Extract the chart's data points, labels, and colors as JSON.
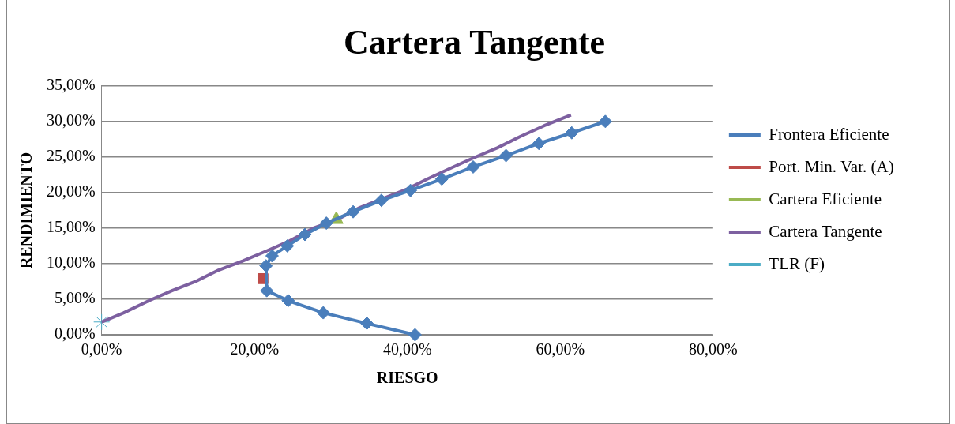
{
  "chart_data": {
    "type": "line",
    "title": "Cartera Tangente",
    "xlabel": "RIESGO",
    "ylabel": "RENDIMIENTO",
    "xlim": [
      0,
      80
    ],
    "xticks": [
      {
        "value": 0,
        "label": "0,00%"
      },
      {
        "value": 20,
        "label": "20,00%"
      },
      {
        "value": 40,
        "label": "40,00%"
      },
      {
        "value": 60,
        "label": "60,00%"
      },
      {
        "value": 80,
        "label": "80,00%"
      }
    ],
    "ylim": [
      0,
      35
    ],
    "yticks": [
      {
        "value": 0,
        "label": "0,00%"
      },
      {
        "value": 5,
        "label": "5,00%"
      },
      {
        "value": 10,
        "label": "10,00%"
      },
      {
        "value": 15,
        "label": "15,00%"
      },
      {
        "value": 20,
        "label": "20,00%"
      },
      {
        "value": 25,
        "label": "25,00%"
      },
      {
        "value": 30,
        "label": "30,00%"
      },
      {
        "value": 35,
        "label": "35,00%"
      }
    ],
    "grid": "y",
    "legend": "right",
    "series": [
      {
        "name": "Frontera Eficiente",
        "color": "#4a7ebb",
        "marker": "diamond",
        "x": [
          41.0,
          34.7,
          29.0,
          24.4,
          21.6,
          21.5,
          22.3,
          24.3,
          26.6,
          29.4,
          32.9,
          36.6,
          40.4,
          44.5,
          48.6,
          52.9,
          57.2,
          61.5,
          65.9
        ],
        "values": [
          0,
          1.6,
          3.1,
          4.8,
          6.2,
          9.7,
          11.1,
          12.5,
          14.1,
          15.7,
          17.3,
          18.9,
          20.3,
          21.9,
          23.6,
          25.2,
          26.9,
          28.4,
          30.0
        ]
      },
      {
        "name": "Port. Min. Var. (A)",
        "color": "#be4b48",
        "marker": "square",
        "x": [
          21.1
        ],
        "values": [
          7.9
        ]
      },
      {
        "name": "Cartera Eficiente",
        "color": "#98b954",
        "marker": "triangle",
        "x": [
          30.7
        ],
        "values": [
          16.2
        ]
      },
      {
        "name": "Cartera Tangente",
        "color": "#7d60a0",
        "marker": "none",
        "x": [
          0,
          2.9,
          6.2,
          9.2,
          12.3,
          15.3,
          18.5,
          21.6,
          24.6,
          27.7,
          30.8,
          33.8,
          36.9,
          40.0,
          42.6,
          45.6,
          48.7,
          51.8,
          54.8,
          57.9,
          61.4
        ],
        "values": [
          1.8,
          3.1,
          4.8,
          6.2,
          7.5,
          9.1,
          10.4,
          11.8,
          13.2,
          15.0,
          16.2,
          17.9,
          19.2,
          20.5,
          21.9,
          23.4,
          24.9,
          26.3,
          27.9,
          29.4,
          30.9
        ]
      },
      {
        "name": "TLR (F)",
        "color": "#4bacc6",
        "marker": "cross",
        "x": [
          0
        ],
        "values": [
          1.8
        ]
      }
    ]
  }
}
